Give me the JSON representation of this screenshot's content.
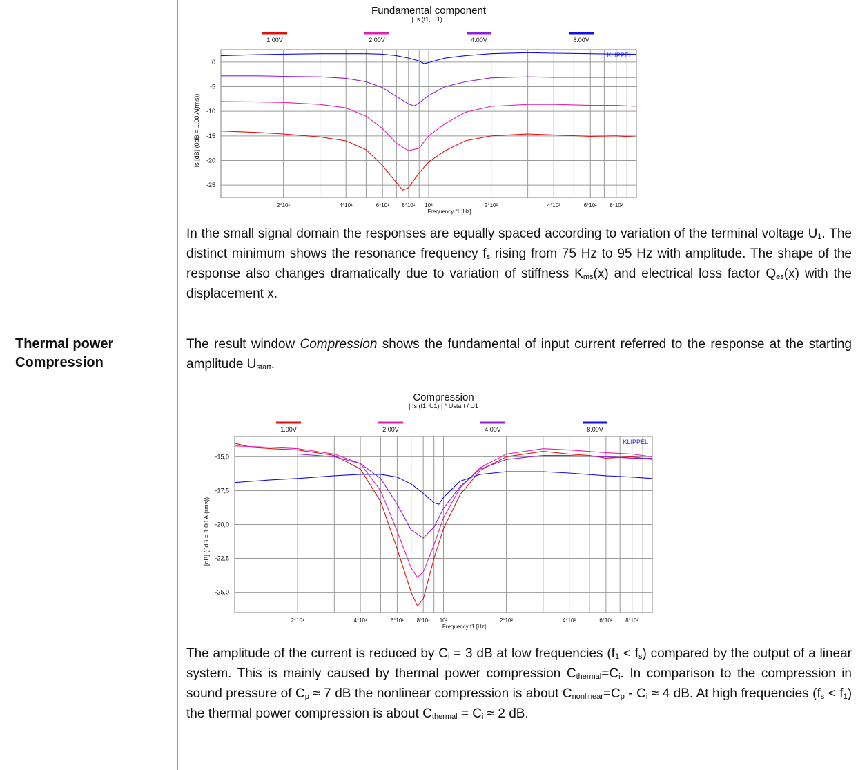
{
  "section2": {
    "label_line1": "Thermal power",
    "label_line2": "Compression"
  },
  "paragraphs": {
    "p1": [
      {
        "t": "In the small signal domain the responses are equally spaced according to variation of the terminal voltage U"
      },
      {
        "t": "1",
        "sub": true
      },
      {
        "t": ". The distinct minimum shows the resonance frequency f"
      },
      {
        "t": "s",
        "sub": true
      },
      {
        "t": " rising from 75 Hz to 95 Hz with amplitude. The shape of the response also changes dramatically due to variation of stiffness K"
      },
      {
        "t": "ms",
        "sub": true
      },
      {
        "t": "(x) and electrical loss factor Q"
      },
      {
        "t": "es",
        "sub": true
      },
      {
        "t": "(x) with the displacement x."
      }
    ],
    "p2": [
      {
        "t": "The result window "
      },
      {
        "t": "Compression",
        "i": true
      },
      {
        "t": " shows the fundamental of input current referred to the response at the starting amplitude U"
      },
      {
        "t": "start",
        "sub": true
      },
      {
        "t": "."
      }
    ],
    "p3": [
      {
        "t": "The amplitude of the current is reduced by C"
      },
      {
        "t": "i",
        "sub": true
      },
      {
        "t": " = 3 dB at low frequencies (f"
      },
      {
        "t": "1",
        "sub": true
      },
      {
        "t": " < f"
      },
      {
        "t": "s",
        "sub": true
      },
      {
        "t": ") compared by the output of a linear system.  This is mainly caused by thermal power compression C"
      },
      {
        "t": "thermal",
        "sub": true
      },
      {
        "t": "=C"
      },
      {
        "t": "i",
        "sub": true
      },
      {
        "t": ". In comparison to the compression in sound pressure of C"
      },
      {
        "t": "p",
        "sub": true
      },
      {
        "t": " ≈ 7 dB the nonlinear compression is about C"
      },
      {
        "t": "nonlinear",
        "sub": true
      },
      {
        "t": "=C"
      },
      {
        "t": "p",
        "sub": true
      },
      {
        "t": " - C"
      },
      {
        "t": "i",
        "sub": true
      },
      {
        "t": " ≈ 4 dB. At high frequencies (f"
      },
      {
        "t": "s",
        "sub": true
      },
      {
        "t": " < f"
      },
      {
        "t": "1",
        "sub": true
      },
      {
        "t": ") the thermal power compression is about  C"
      },
      {
        "t": "thermal",
        "sub": true
      },
      {
        "t": " = C"
      },
      {
        "t": "i",
        "sub": true
      },
      {
        "t": " ≈ 2 dB."
      }
    ]
  },
  "colors": {
    "red": "#e01010",
    "magenta": "#e020b0",
    "purple": "#9020e0",
    "blue": "#1010e0"
  },
  "chart_data": [
    {
      "type": "line",
      "title": "Fundamental component",
      "subtitle": "| Is (f1, U1) |",
      "xlabel": "Frequency f1 [Hz]",
      "ylabel": "Is [dB]  (0dB = 1.00 A(rms))",
      "watermark": "KLIPPEL",
      "xscale": "log",
      "xlim": [
        10,
        1000
      ],
      "ylim": [
        -27.5,
        2.5
      ],
      "yticks": [
        0,
        -5,
        -10,
        -15,
        -20,
        -25
      ],
      "ytick_labels": [
        "0",
        "-5",
        "-10",
        "-15",
        "-20",
        "-25"
      ],
      "xticks": [
        20,
        40,
        60,
        80,
        100,
        200,
        400,
        600,
        800
      ],
      "xtick_labels": [
        "2*10¹",
        "4*10¹",
        "6*10¹",
        "8*10¹",
        "10²",
        "2*10²",
        "4*10²",
        "6*10²",
        "8*10²"
      ],
      "grid": true,
      "legend": "top",
      "series": [
        {
          "name": "1.00V",
          "color": "#e01010",
          "x": [
            10,
            15,
            20,
            30,
            40,
            50,
            60,
            70,
            75,
            80,
            90,
            100,
            120,
            150,
            200,
            300,
            400,
            600,
            800,
            1000
          ],
          "y": [
            -14,
            -14.3,
            -14.6,
            -15.2,
            -16,
            -17.8,
            -21,
            -24.5,
            -26,
            -25.5,
            -22.5,
            -20.3,
            -18,
            -16,
            -15,
            -14.6,
            -14.8,
            -15.1,
            -15,
            -15.2
          ]
        },
        {
          "name": "2.00V",
          "color": "#e020b0",
          "x": [
            10,
            15,
            20,
            30,
            40,
            50,
            60,
            70,
            80,
            90,
            100,
            120,
            150,
            200,
            300,
            400,
            600,
            800,
            1000
          ],
          "y": [
            -8,
            -8.1,
            -8.2,
            -8.6,
            -9.3,
            -11,
            -13.5,
            -16.5,
            -18,
            -17.5,
            -15,
            -12.5,
            -10.2,
            -9,
            -8.6,
            -8.6,
            -8.8,
            -8.8,
            -9
          ]
        },
        {
          "name": "4.00V",
          "color": "#9020e0",
          "x": [
            10,
            15,
            20,
            30,
            40,
            50,
            60,
            70,
            80,
            85,
            90,
            100,
            120,
            150,
            200,
            300,
            400,
            600,
            800,
            1000
          ],
          "y": [
            -2.8,
            -2.8,
            -2.9,
            -3,
            -3.3,
            -4,
            -5.2,
            -7,
            -8.5,
            -8.9,
            -8.3,
            -6.8,
            -5,
            -4,
            -3.2,
            -3,
            -3.1,
            -3.1,
            -3.1,
            -3.1
          ]
        },
        {
          "name": "8.00V",
          "color": "#1010e0",
          "x": [
            10,
            15,
            20,
            30,
            40,
            50,
            60,
            70,
            80,
            90,
            95,
            100,
            120,
            150,
            200,
            300,
            400,
            600,
            800,
            1000
          ],
          "y": [
            1.3,
            1.5,
            1.6,
            1.7,
            1.7,
            1.7,
            1.6,
            1.3,
            0.8,
            0.2,
            -0.3,
            -0.1,
            0.8,
            1.3,
            1.7,
            1.9,
            1.8,
            1.7,
            1.6,
            1.6
          ]
        }
      ]
    },
    {
      "type": "line",
      "title": "Compression",
      "subtitle": "| Is (f1, U1) | * Ustart / U1",
      "xlabel": "Frequency f1 [Hz]",
      "ylabel": "[dB]  (0dB = 1.00 A (rms))",
      "watermark": "KLIPPEL",
      "xscale": "log",
      "xlim": [
        10,
        1000
      ],
      "ylim": [
        -26.5,
        -13.5
      ],
      "yticks": [
        -15,
        -17.5,
        -20,
        -22.5,
        -25
      ],
      "ytick_labels": [
        "-15,0",
        "-17,5",
        "-20,0",
        "-22,5",
        "-25,0"
      ],
      "xticks": [
        20,
        40,
        60,
        80,
        100,
        200,
        400,
        600,
        800
      ],
      "xtick_labels": [
        "2*10¹",
        "4*10¹",
        "6*10¹",
        "8*10¹",
        "10²",
        "2*10²",
        "4*10²",
        "6*10²",
        "8*10²"
      ],
      "grid": true,
      "legend": "top",
      "series": [
        {
          "name": "1.00V",
          "color": "#e01010",
          "x": [
            10,
            12,
            15,
            20,
            30,
            40,
            50,
            60,
            70,
            75,
            80,
            90,
            100,
            120,
            150,
            200,
            300,
            400,
            500,
            600,
            800,
            1000
          ],
          "y": [
            -14,
            -14.3,
            -14.4,
            -14.5,
            -14.9,
            -15.9,
            -18.3,
            -21.8,
            -25,
            -26,
            -25.5,
            -22.5,
            -20.3,
            -17.8,
            -16,
            -15,
            -14.6,
            -14.8,
            -14.9,
            -15.1,
            -15.0,
            -15.2
          ]
        },
        {
          "name": "2.00V",
          "color": "#e020b0",
          "x": [
            10,
            15,
            20,
            30,
            40,
            50,
            60,
            70,
            75,
            80,
            90,
            100,
            120,
            150,
            200,
            300,
            400,
            600,
            800,
            1000
          ],
          "y": [
            -14.2,
            -14.3,
            -14.4,
            -14.8,
            -15.5,
            -17.5,
            -20.5,
            -23.2,
            -23.9,
            -23.5,
            -21.5,
            -19.5,
            -17.3,
            -15.8,
            -14.8,
            -14.4,
            -14.5,
            -14.7,
            -14.8,
            -15
          ]
        },
        {
          "name": "4.00V",
          "color": "#9020e0",
          "x": [
            10,
            15,
            20,
            30,
            40,
            50,
            60,
            70,
            80,
            90,
            100,
            120,
            150,
            200,
            300,
            400,
            600,
            800,
            1000
          ],
          "y": [
            -14.8,
            -14.8,
            -14.8,
            -15.0,
            -15.5,
            -16.6,
            -18.5,
            -20.4,
            -21.0,
            -20.2,
            -18.8,
            -17.2,
            -15.9,
            -15.2,
            -14.9,
            -14.9,
            -15.0,
            -15.1,
            -15.1
          ]
        },
        {
          "name": "8.00V",
          "color": "#1010e0",
          "x": [
            10,
            15,
            20,
            30,
            40,
            50,
            60,
            70,
            80,
            90,
            95,
            100,
            120,
            150,
            200,
            300,
            400,
            600,
            800,
            1000
          ],
          "y": [
            -16.9,
            -16.7,
            -16.6,
            -16.4,
            -16.3,
            -16.3,
            -16.5,
            -17.0,
            -17.7,
            -18.4,
            -18.5,
            -18.0,
            -16.8,
            -16.3,
            -16.1,
            -16.1,
            -16.2,
            -16.4,
            -16.5,
            -16.6
          ]
        }
      ]
    }
  ]
}
